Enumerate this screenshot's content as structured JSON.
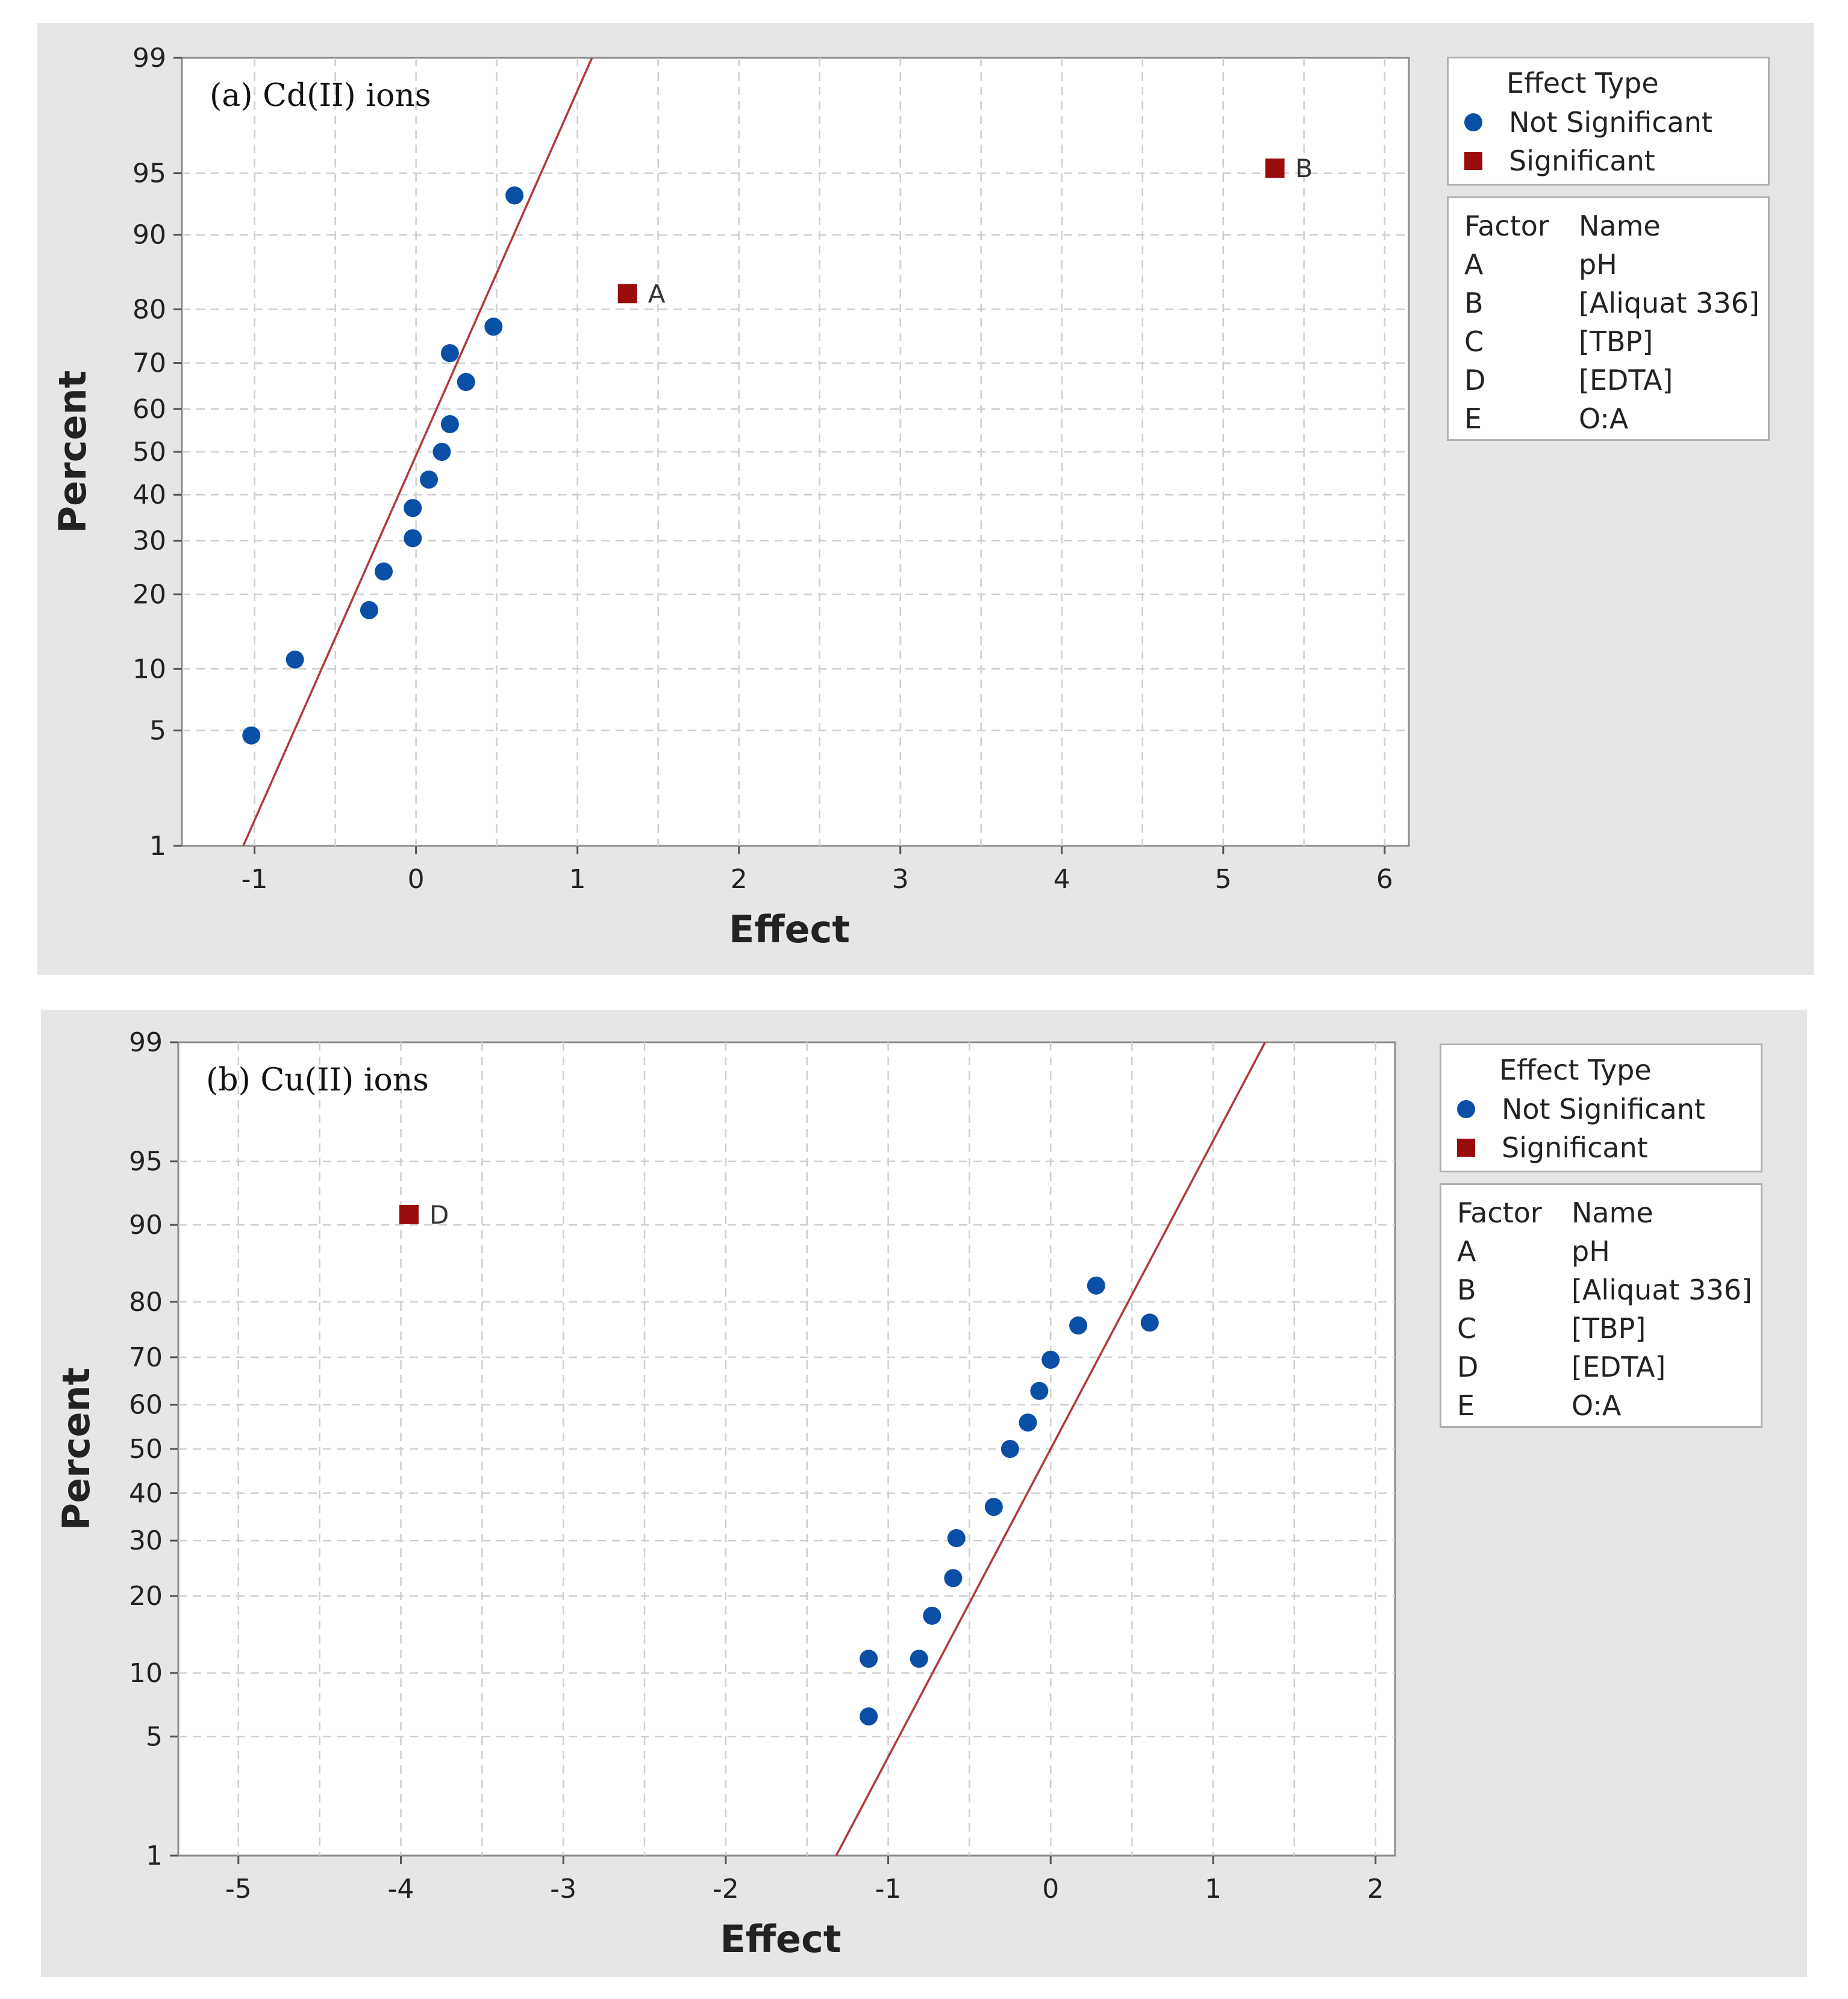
{
  "colors": {
    "panel_bg": "#e6e6e6",
    "not_significant": "#0a4fa6",
    "significant": "#9b0d0d",
    "fit_line": "#b03a3a",
    "grid": "#cfcfcf"
  },
  "legend": {
    "effect_type_title": "Effect Type",
    "not_significant_label": "Not Significant",
    "significant_label": "Significant",
    "factor_header": "Factor",
    "name_header": "Name",
    "factors": [
      {
        "factor": "A",
        "name": "pH"
      },
      {
        "factor": "B",
        "name": "[Aliquat 336]"
      },
      {
        "factor": "C",
        "name": "[TBP]"
      },
      {
        "factor": "D",
        "name": "[EDTA]"
      },
      {
        "factor": "E",
        "name": "O:A"
      }
    ]
  },
  "chart_data": [
    {
      "type": "scatter",
      "title": "(a) Cd(II) ions",
      "xlabel": "Effect",
      "ylabel": "Percent",
      "xlim": [
        -1.45,
        6.15
      ],
      "x_ticks": [
        -1,
        0,
        1,
        2,
        3,
        4,
        5,
        6
      ],
      "y_ticks": [
        1,
        5,
        10,
        20,
        30,
        40,
        50,
        60,
        70,
        80,
        90,
        95,
        99
      ],
      "y_scale": "normal-probability",
      "fit_line": {
        "x_at_1": -1.07,
        "x_at_99": 1.09
      },
      "not_significant": [
        {
          "x": -1.02,
          "y": 4.7
        },
        {
          "x": -0.75,
          "y": 11.0
        },
        {
          "x": -0.29,
          "y": 17.5
        },
        {
          "x": -0.2,
          "y": 24.0
        },
        {
          "x": -0.02,
          "y": 30.5
        },
        {
          "x": -0.02,
          "y": 37.0
        },
        {
          "x": 0.08,
          "y": 43.5
        },
        {
          "x": 0.16,
          "y": 50.0
        },
        {
          "x": 0.21,
          "y": 56.5
        },
        {
          "x": 0.31,
          "y": 66.0
        },
        {
          "x": 0.21,
          "y": 72.0
        },
        {
          "x": 0.48,
          "y": 77.0
        },
        {
          "x": 0.61,
          "y": 93.5
        }
      ],
      "significant": [
        {
          "x": 1.31,
          "y": 82.5,
          "label": "A"
        },
        {
          "x": 5.32,
          "y": 95.3,
          "label": "B"
        }
      ]
    },
    {
      "type": "scatter",
      "title": "(b) Cu(II) ions",
      "xlabel": "Effect",
      "ylabel": "Percent",
      "xlim": [
        -5.37,
        2.12
      ],
      "x_ticks": [
        -5,
        -4,
        -3,
        -2,
        -1,
        0,
        1,
        2
      ],
      "y_ticks": [
        1,
        5,
        10,
        20,
        30,
        40,
        50,
        60,
        70,
        80,
        90,
        95,
        99
      ],
      "y_scale": "normal-probability",
      "fit_line": {
        "x_at_1": -1.32,
        "x_at_99": 1.32
      },
      "not_significant": [
        {
          "x": -1.12,
          "y": 6.3
        },
        {
          "x": -1.12,
          "y": 11.5
        },
        {
          "x": -0.81,
          "y": 11.5
        },
        {
          "x": -0.73,
          "y": 17.0
        },
        {
          "x": -0.6,
          "y": 23.0
        },
        {
          "x": -0.58,
          "y": 30.5
        },
        {
          "x": -0.35,
          "y": 37.0
        },
        {
          "x": -0.25,
          "y": 50.0
        },
        {
          "x": -0.14,
          "y": 56.0
        },
        {
          "x": -0.07,
          "y": 63.0
        },
        {
          "x": 0.0,
          "y": 69.5
        },
        {
          "x": 0.17,
          "y": 76.0
        },
        {
          "x": 0.61,
          "y": 76.5
        },
        {
          "x": 0.28,
          "y": 82.5
        }
      ],
      "significant": [
        {
          "x": -3.95,
          "y": 91.0,
          "label": "D"
        }
      ]
    }
  ]
}
